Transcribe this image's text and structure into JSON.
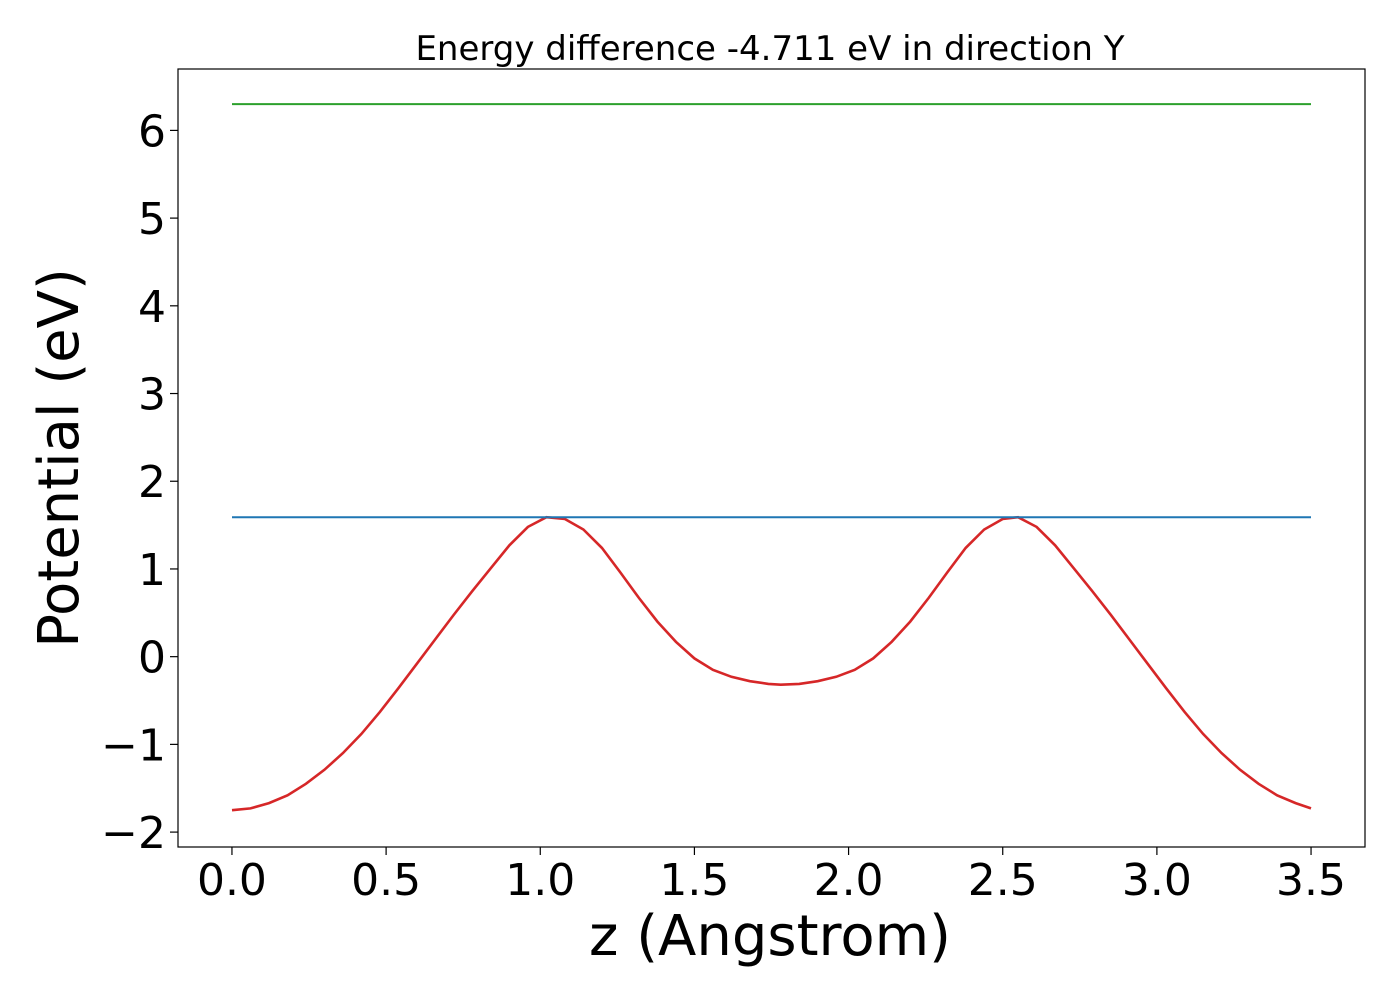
{
  "chart_data": {
    "type": "line",
    "title": "Energy difference -4.711 eV in direction Y",
    "xlabel": "z (Angstrom)",
    "ylabel": "Potential (eV)",
    "xlim": [
      -0.175,
      3.675
    ],
    "ylim": [
      -2.17,
      6.7
    ],
    "x_ticks": [
      0.0,
      0.5,
      1.0,
      1.5,
      2.0,
      2.5,
      3.0,
      3.5
    ],
    "x_tick_labels": [
      "0.0",
      "0.5",
      "1.0",
      "1.5",
      "2.0",
      "2.5",
      "3.0",
      "3.5"
    ],
    "y_ticks": [
      -2,
      -1,
      0,
      1,
      2,
      3,
      4,
      5,
      6
    ],
    "y_tick_labels": [
      "−2",
      "−1",
      "0",
      "1",
      "2",
      "3",
      "4",
      "5",
      "6"
    ],
    "grid": false,
    "series": [
      {
        "color": "#d62728",
        "x": [
          0.0,
          0.06,
          0.12,
          0.18,
          0.24,
          0.3,
          0.36,
          0.42,
          0.48,
          0.54,
          0.6,
          0.66,
          0.72,
          0.78,
          0.84,
          0.9,
          0.96,
          1.02,
          1.08,
          1.14,
          1.2,
          1.26,
          1.32,
          1.38,
          1.44,
          1.5,
          1.56,
          1.62,
          1.68,
          1.74,
          1.78,
          1.84,
          1.9,
          1.96,
          2.02,
          2.08,
          2.14,
          2.2,
          2.26,
          2.32,
          2.38,
          2.44,
          2.5,
          2.55,
          2.61,
          2.67,
          2.73,
          2.79,
          2.85,
          2.91,
          2.97,
          3.03,
          3.09,
          3.15,
          3.21,
          3.27,
          3.33,
          3.39,
          3.45,
          3.5
        ],
        "y": [
          -1.75,
          -1.73,
          -1.67,
          -1.58,
          -1.45,
          -1.29,
          -1.1,
          -0.88,
          -0.63,
          -0.36,
          -0.08,
          0.2,
          0.48,
          0.75,
          1.01,
          1.27,
          1.48,
          1.59,
          1.57,
          1.45,
          1.24,
          0.96,
          0.67,
          0.4,
          0.17,
          -0.02,
          -0.15,
          -0.23,
          -0.28,
          -0.31,
          -0.32,
          -0.31,
          -0.28,
          -0.23,
          -0.15,
          -0.02,
          0.17,
          0.4,
          0.67,
          0.96,
          1.24,
          1.45,
          1.57,
          1.59,
          1.48,
          1.27,
          1.01,
          0.75,
          0.48,
          0.2,
          -0.08,
          -0.36,
          -0.63,
          -0.88,
          -1.1,
          -1.29,
          -1.45,
          -1.58,
          -1.67,
          -1.73
        ]
      },
      {
        "color": "#1f77b4",
        "x": [
          0.0,
          3.5
        ],
        "y": [
          1.59,
          1.59
        ]
      },
      {
        "color": "#2ca02c",
        "x": [
          0.0,
          3.5
        ],
        "y": [
          6.3,
          6.3
        ]
      }
    ]
  }
}
